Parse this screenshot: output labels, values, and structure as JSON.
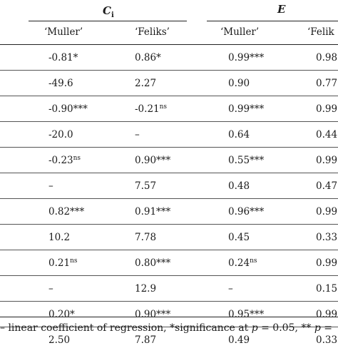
{
  "header": {
    "groups": [
      {
        "symbol": "C",
        "subscript": "i"
      },
      {
        "symbol": "E",
        "subscript": ""
      }
    ],
    "subheaders": [
      "‘Muller’",
      "‘Feliks’",
      "‘Muller’",
      "‘Felik"
    ]
  },
  "rows": [
    {
      "cells": [
        {
          "v": "-0.81*",
          "s": ""
        },
        {
          "v": "0.86*",
          "s": ""
        },
        {
          "v": "0.99***",
          "s": ""
        },
        {
          "v": "0.98",
          "s": ""
        }
      ]
    },
    {
      "cells": [
        {
          "v": "-49.6",
          "s": ""
        },
        {
          "v": "2.27",
          "s": ""
        },
        {
          "v": "0.90",
          "s": ""
        },
        {
          "v": "0.77",
          "s": ""
        }
      ]
    },
    {
      "cells": [
        {
          "v": "-0.90***",
          "s": ""
        },
        {
          "v": "-0.21",
          "s": "ns"
        },
        {
          "v": "0.99***",
          "s": ""
        },
        {
          "v": "0.99",
          "s": ""
        }
      ]
    },
    {
      "cells": [
        {
          "v": "-20.0",
          "s": ""
        },
        {
          "v": "–",
          "s": ""
        },
        {
          "v": "0.64",
          "s": ""
        },
        {
          "v": "0.44",
          "s": ""
        }
      ]
    },
    {
      "cells": [
        {
          "v": "-0.23",
          "s": "ns"
        },
        {
          "v": "0.90***",
          "s": ""
        },
        {
          "v": "0.55***",
          "s": ""
        },
        {
          "v": "0.99",
          "s": ""
        }
      ]
    },
    {
      "cells": [
        {
          "v": "–",
          "s": ""
        },
        {
          "v": "7.57",
          "s": ""
        },
        {
          "v": "0.48",
          "s": ""
        },
        {
          "v": "0.47",
          "s": ""
        }
      ]
    },
    {
      "cells": [
        {
          "v": "0.82***",
          "s": ""
        },
        {
          "v": "0.91***",
          "s": ""
        },
        {
          "v": "0.96***",
          "s": ""
        },
        {
          "v": "0.99",
          "s": ""
        }
      ]
    },
    {
      "cells": [
        {
          "v": "10.2",
          "s": ""
        },
        {
          "v": "7.78",
          "s": ""
        },
        {
          "v": "0.45",
          "s": ""
        },
        {
          "v": "0.33",
          "s": ""
        }
      ]
    },
    {
      "cells": [
        {
          "v": "0.21",
          "s": "ns"
        },
        {
          "v": "0.80***",
          "s": ""
        },
        {
          "v": "0.24",
          "s": "ns"
        },
        {
          "v": "0.99",
          "s": ""
        }
      ]
    },
    {
      "cells": [
        {
          "v": "–",
          "s": ""
        },
        {
          "v": "12.9",
          "s": ""
        },
        {
          "v": "–",
          "s": ""
        },
        {
          "v": "0.15",
          "s": ""
        }
      ]
    },
    {
      "cells": [
        {
          "v": "0.20*",
          "s": ""
        },
        {
          "v": "0.90***",
          "s": ""
        },
        {
          "v": "0.95***",
          "s": ""
        },
        {
          "v": "0.99",
          "s": ""
        }
      ]
    },
    {
      "cells": [
        {
          "v": "2.50",
          "s": ""
        },
        {
          "v": "7.87",
          "s": ""
        },
        {
          "v": "0.49",
          "s": ""
        },
        {
          "v": "0.33",
          "s": ""
        }
      ]
    }
  ],
  "footnote": {
    "prefix": "– linear coefficient of regression, *significance at ",
    "p1": "p",
    "mid": " = 0.05, ** ",
    "p2": "p",
    "end": " ="
  }
}
